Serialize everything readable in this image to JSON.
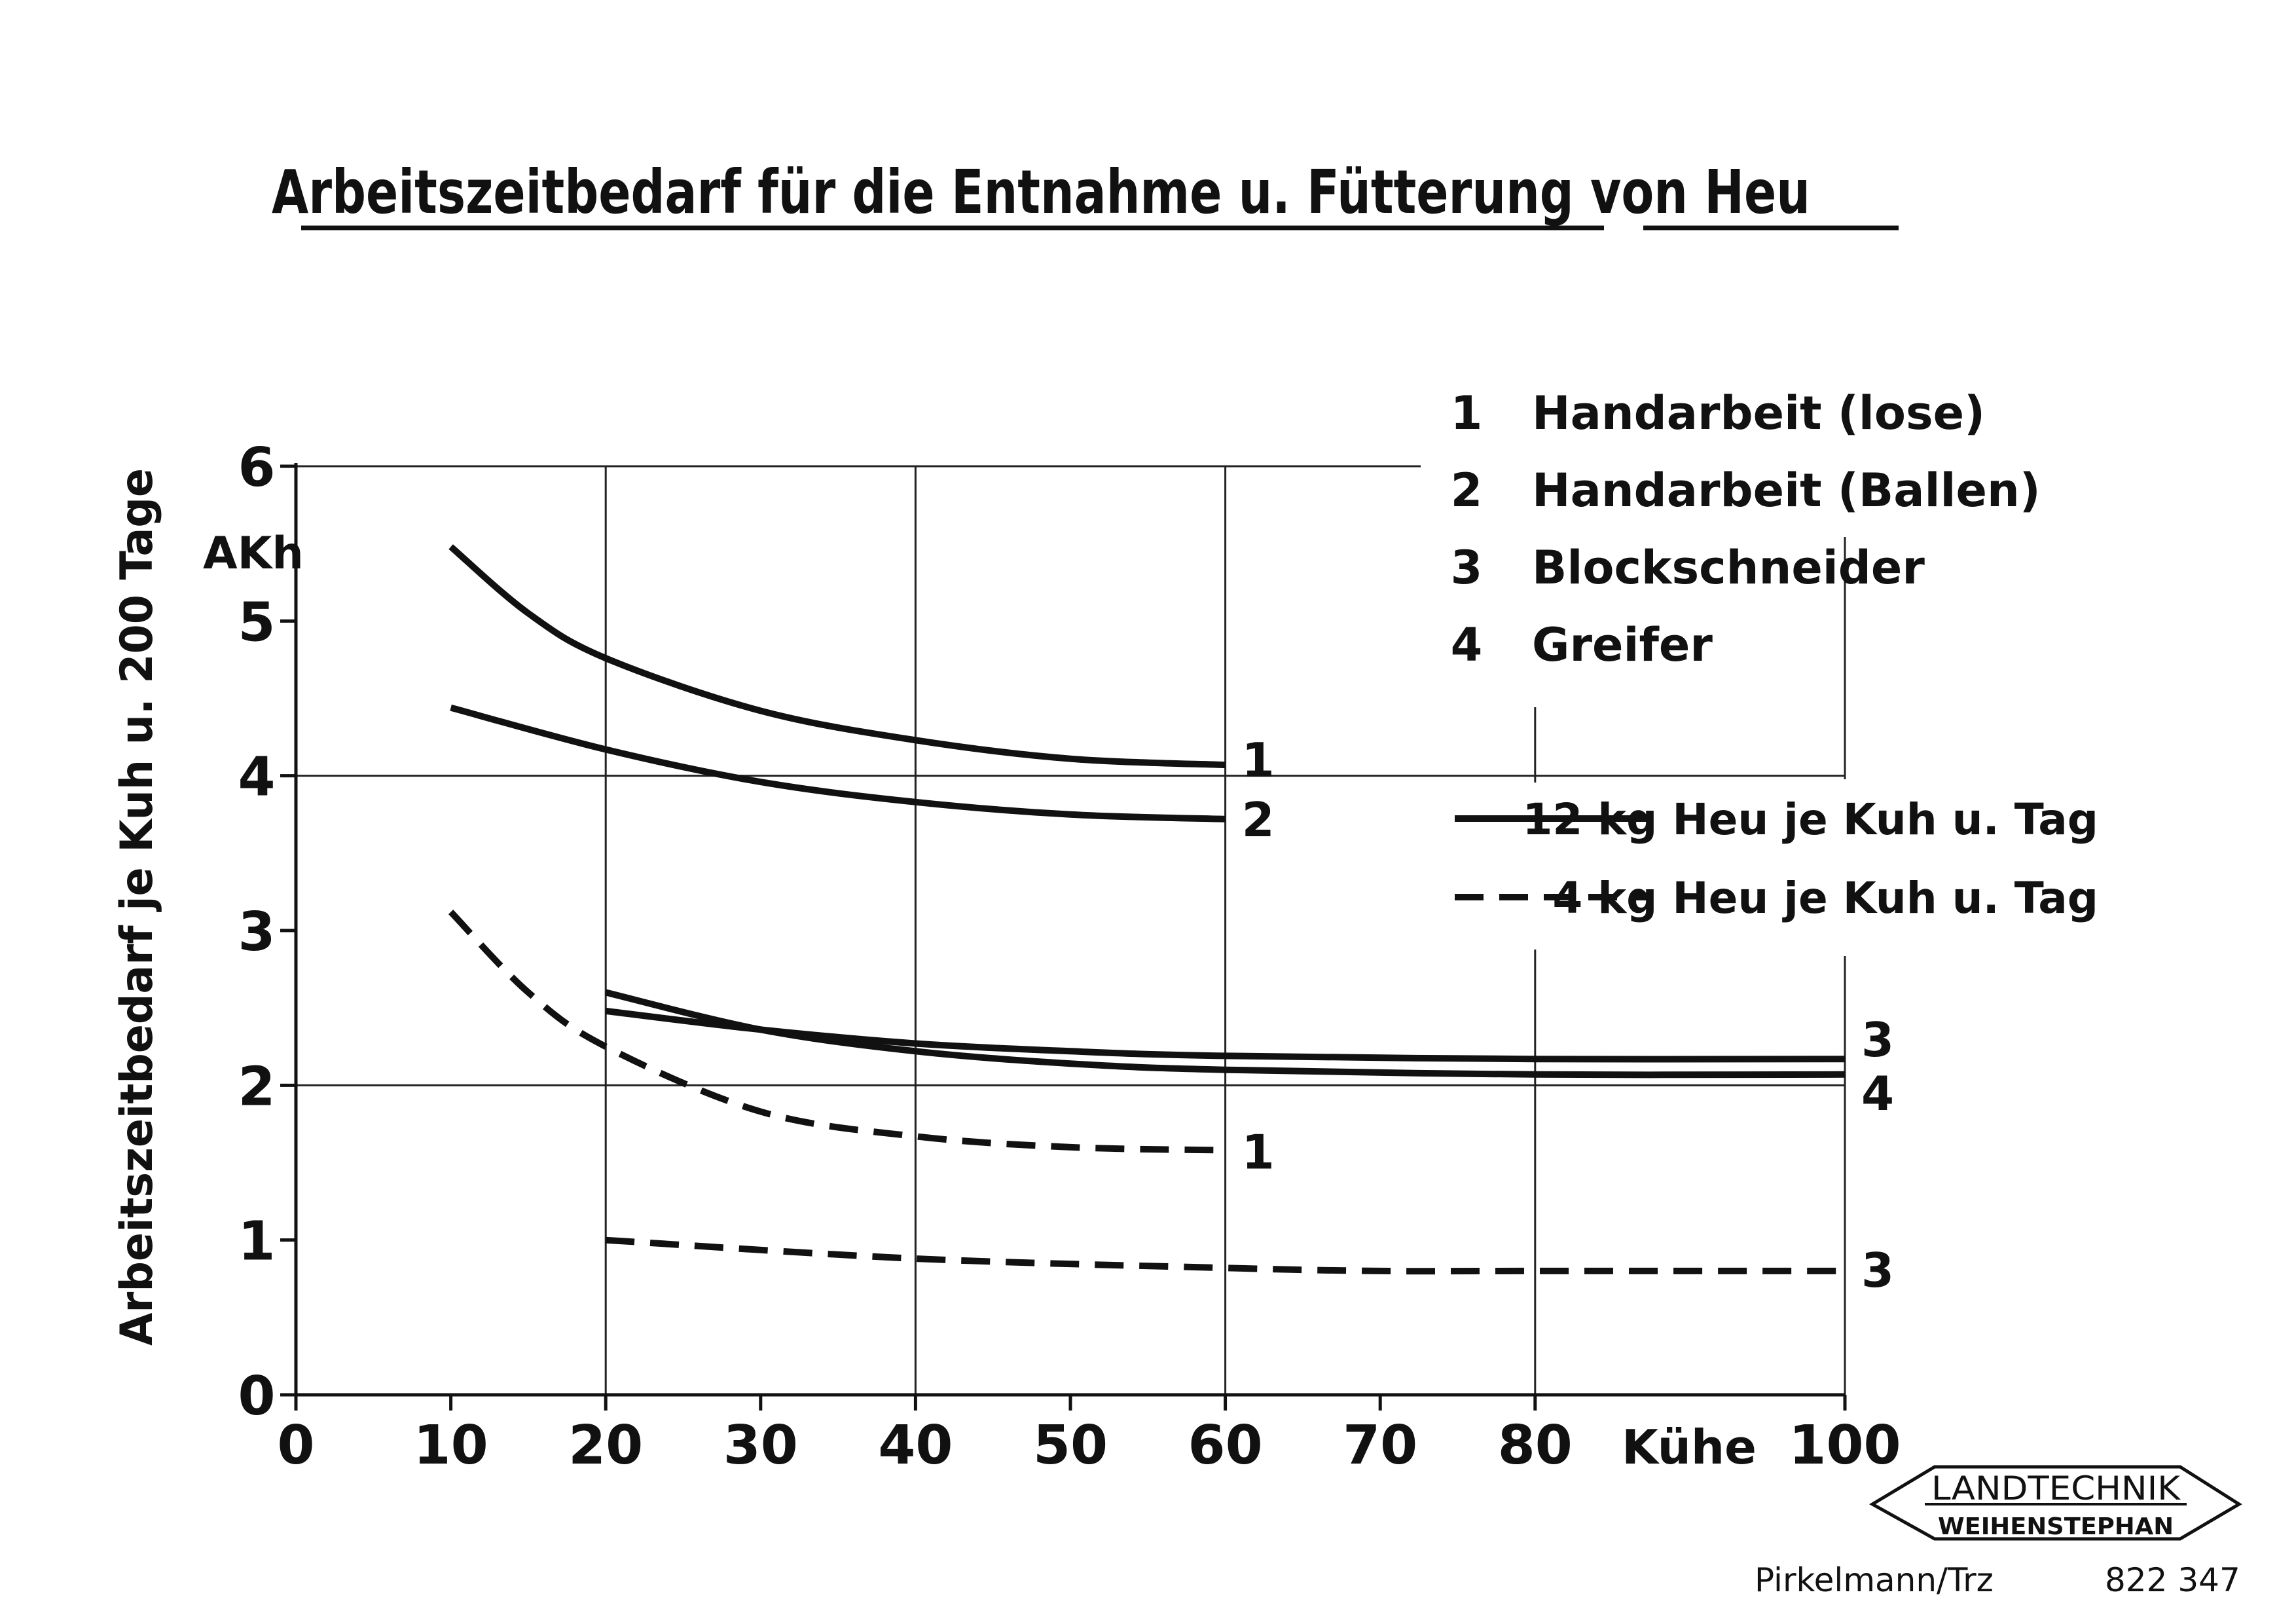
{
  "chart_data": {
    "type": "line",
    "title": "Arbeitszeitbedarf für die Entnahme u. Fütterung von Heu",
    "xlabel": "Kühe",
    "ylabel": "Arbeitszeitbedarf je Kuh u. 200 Tage",
    "yunit": "AKh",
    "xlim": [
      0,
      100
    ],
    "ylim": [
      0,
      6
    ],
    "xticks": [
      "0",
      "10",
      "20",
      "30",
      "40",
      "50",
      "60",
      "70",
      "80",
      "100"
    ],
    "yticks": [
      "0",
      "1",
      "2",
      "3",
      "4",
      "5",
      "6"
    ],
    "grid": true,
    "methods": [
      {
        "num": "1",
        "name": "Handarbeit (lose)"
      },
      {
        "num": "2",
        "name": "Handarbeit (Ballen)"
      },
      {
        "num": "3",
        "name": "Blockschneider"
      },
      {
        "num": "4",
        "name": "Greifer"
      }
    ],
    "line_styles": [
      {
        "label": "12 kg Heu je Kuh u. Tag",
        "dash": "solid"
      },
      {
        "label": "4 kg Heu je Kuh u. Tag",
        "dash": "dashed"
      }
    ],
    "series": [
      {
        "label": "1",
        "style": "solid",
        "x": [
          10,
          15,
          20,
          30,
          40,
          50,
          60
        ],
        "y": [
          5.48,
          5.05,
          4.76,
          4.42,
          4.23,
          4.11,
          4.07
        ]
      },
      {
        "label": "2",
        "style": "solid",
        "x": [
          10,
          20,
          30,
          40,
          50,
          60
        ],
        "y": [
          4.44,
          4.17,
          3.96,
          3.83,
          3.75,
          3.72
        ]
      },
      {
        "label": "3",
        "style": "solid",
        "x": [
          20,
          30,
          40,
          50,
          60,
          80,
          100
        ],
        "y": [
          2.48,
          2.36,
          2.27,
          2.22,
          2.19,
          2.17,
          2.17
        ]
      },
      {
        "label": "4",
        "style": "solid",
        "x": [
          20,
          30,
          40,
          50,
          60,
          80,
          100
        ],
        "y": [
          2.6,
          2.36,
          2.22,
          2.14,
          2.1,
          2.07,
          2.07
        ]
      },
      {
        "label": "1",
        "style": "dashed",
        "x": [
          10,
          15,
          20,
          30,
          40,
          50,
          60
        ],
        "y": [
          3.12,
          2.6,
          2.25,
          1.83,
          1.67,
          1.6,
          1.58
        ]
      },
      {
        "label": "3",
        "style": "dashed",
        "x": [
          20,
          40,
          60,
          70,
          80,
          100
        ],
        "y": [
          1.0,
          0.88,
          0.82,
          0.8,
          0.8,
          0.8
        ]
      }
    ]
  },
  "footer": {
    "logo_line1": "LANDTECHNIK",
    "logo_line2": "WEIHENSTEPHAN",
    "author": "Pirkelmann/Trz",
    "number": "822 347"
  }
}
